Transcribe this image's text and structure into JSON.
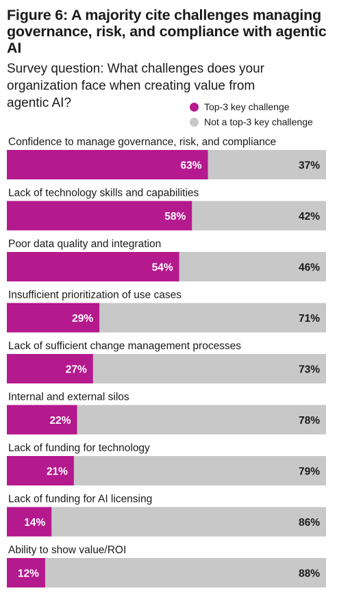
{
  "title": "Figure 6: A majority cite challenges managing governance, risk, and compliance with agentic AI",
  "subtitle": "Survey question: What challenges does your organization face when creating value from agentic AI?",
  "colors": {
    "primary": "#b5198e",
    "secondary": "#c8c8c8",
    "text": "#1a1a1a",
    "label_on_primary": "#ffffff"
  },
  "chart_data": {
    "type": "bar",
    "orientation": "horizontal",
    "stacked": true,
    "percent_scale": [
      0,
      100
    ],
    "categories": [
      "Confidence to manage governance, risk, and compliance",
      "Lack of technology skills and capabilities",
      "Poor data quality and integration",
      "Insufficient prioritization of use cases",
      "Lack of sufficient change management processes",
      "Internal and external silos",
      "Lack of funding for technology",
      "Lack of funding for AI licensing",
      "Ability to show value/ROI"
    ],
    "series": [
      {
        "name": "Top-3 key challenge",
        "values": [
          63,
          58,
          54,
          29,
          27,
          22,
          21,
          14,
          12
        ],
        "labels": [
          "63%",
          "58%",
          "54%",
          "29%",
          "27%",
          "22%",
          "21%",
          "14%",
          "12%"
        ]
      },
      {
        "name": "Not a top-3 key challenge",
        "values": [
          37,
          42,
          46,
          71,
          73,
          78,
          79,
          86,
          88
        ],
        "labels": [
          "37%",
          "42%",
          "46%",
          "71%",
          "73%",
          "78%",
          "79%",
          "86%",
          "88%"
        ]
      }
    ],
    "legend_position": "top-right",
    "grid": false
  }
}
